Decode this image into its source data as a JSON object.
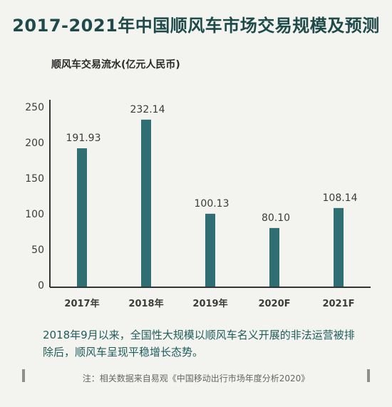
{
  "title": "2017-2021年中国顺风车市场交易规模及预测",
  "note": "2018年9月以来，全国性大规模以顺风车名义开展的非法运营被排除后，顺风车呈现平稳增长态势。",
  "source": "注：相关数据来自易观《中国移动出行市场年度分析2020》",
  "colors": {
    "bar": "#2f6e72",
    "title": "#1f4a4a",
    "note": "#1f5c5c",
    "background": "#f3f4ef"
  },
  "chart_data": {
    "type": "bar",
    "title": "",
    "ylabel": "顺风车交易流水(亿元人民币)",
    "xlabel": "",
    "categories": [
      "2017年",
      "2018年",
      "2019年",
      "2020F",
      "2021F"
    ],
    "values": [
      191.93,
      232.14,
      100.13,
      80.1,
      108.14
    ],
    "value_labels": [
      "191.93",
      "232.14",
      "100.13",
      "80.10",
      "108.14"
    ],
    "ylim": [
      0,
      250
    ],
    "yticks": [
      "0",
      "50",
      "100",
      "150",
      "200",
      "250"
    ],
    "grid": false,
    "legend": "none"
  }
}
